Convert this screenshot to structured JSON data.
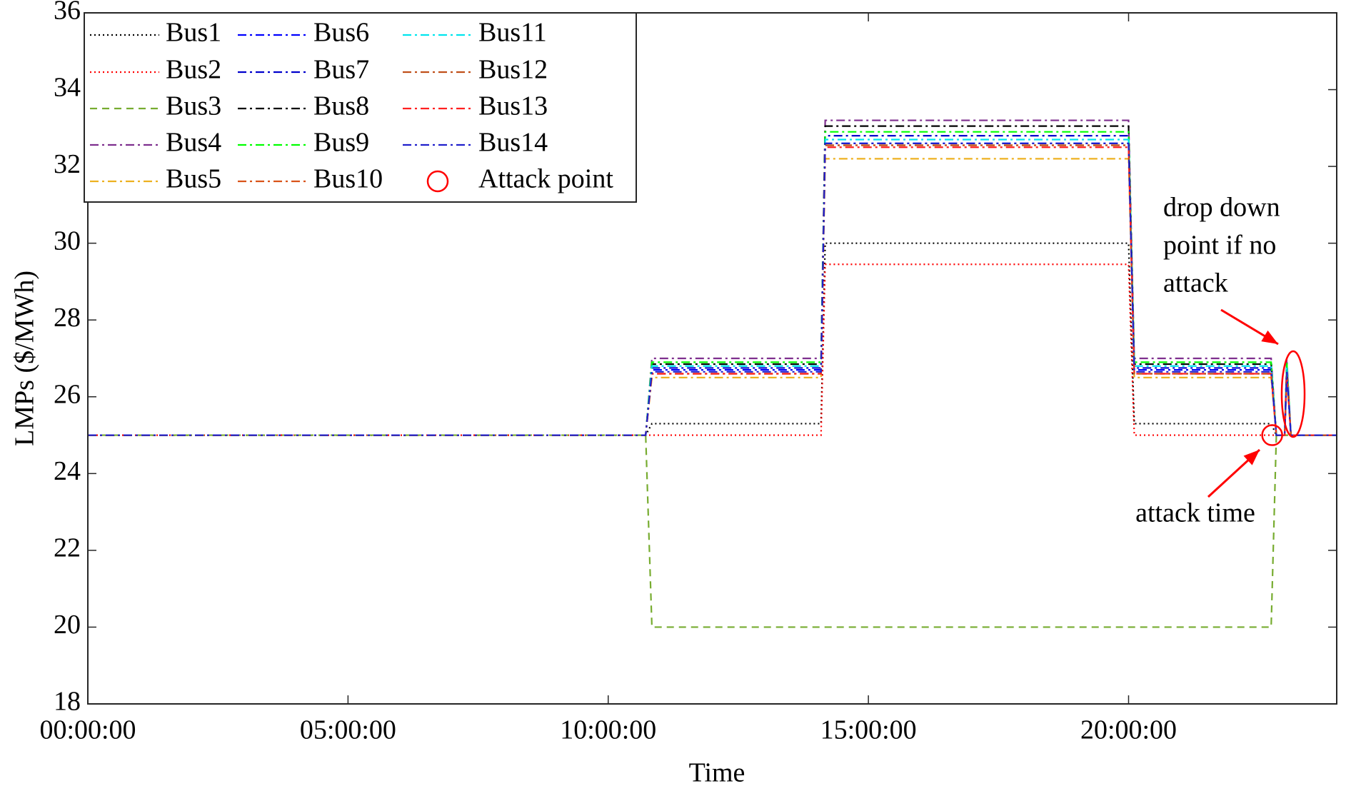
{
  "chart_data": {
    "type": "line",
    "xlabel": "Time",
    "ylabel": "LMPs ($/MWh)",
    "x": [
      0,
      10.72,
      10.84,
      14.09,
      14.17,
      20.0,
      20.11,
      22.74,
      22.84,
      23.0,
      23.04,
      23.12,
      24
    ],
    "xlim": [
      0,
      24
    ],
    "xticks": [
      {
        "value": 0,
        "label": "00:00:00"
      },
      {
        "value": 5,
        "label": "05:00:00"
      },
      {
        "value": 10,
        "label": "10:00:00"
      },
      {
        "value": 15,
        "label": "15:00:00"
      },
      {
        "value": 20,
        "label": "20:00:00"
      }
    ],
    "ylim": [
      18,
      36
    ],
    "yticks": [
      18,
      20,
      22,
      24,
      26,
      28,
      30,
      32,
      34,
      36
    ],
    "series": [
      {
        "name": "Bus1",
        "color": "#000000",
        "style": "dotted",
        "values": [
          25,
          25,
          25.3,
          25.3,
          30.0,
          30.0,
          25.3,
          25.3,
          25,
          25,
          25,
          25,
          25
        ]
      },
      {
        "name": "Bus2",
        "color": "#ff0000",
        "style": "dotted",
        "values": [
          25,
          25,
          25,
          25,
          29.45,
          29.45,
          25,
          25,
          25,
          25,
          25,
          25,
          25
        ]
      },
      {
        "name": "Bus3",
        "color": "#77ac30",
        "style": "dashed",
        "values": [
          25,
          25,
          20,
          20,
          20,
          20,
          20,
          20,
          25,
          25,
          25,
          25,
          25
        ]
      },
      {
        "name": "Bus4",
        "color": "#7e2f8e",
        "style": "dashdot",
        "values": [
          25,
          25,
          27.0,
          27.0,
          33.2,
          33.2,
          27.0,
          27.0,
          25,
          25,
          27.0,
          25,
          25
        ]
      },
      {
        "name": "Bus5",
        "color": "#edb120",
        "style": "dashdot",
        "values": [
          25,
          25,
          26.5,
          26.5,
          32.2,
          32.2,
          26.5,
          26.5,
          25,
          25,
          26.5,
          25,
          25
        ]
      },
      {
        "name": "Bus6",
        "color": "#0000ff",
        "style": "dashdot",
        "values": [
          25,
          25,
          26.7,
          26.7,
          32.6,
          32.6,
          26.7,
          26.7,
          25,
          25,
          26.7,
          25,
          25
        ]
      },
      {
        "name": "Bus7",
        "color": "#0000cc",
        "style": "dashdot",
        "values": [
          25,
          25,
          26.75,
          26.75,
          32.8,
          32.8,
          26.75,
          26.75,
          25,
          25,
          26.75,
          25,
          25
        ]
      },
      {
        "name": "Bus8",
        "color": "#000000",
        "style": "dashdot",
        "values": [
          25,
          25,
          26.85,
          26.85,
          33.05,
          33.05,
          26.85,
          26.85,
          25,
          25,
          26.85,
          25,
          25
        ]
      },
      {
        "name": "Bus9",
        "color": "#00ff00",
        "style": "dashdot",
        "values": [
          25,
          25,
          26.9,
          26.9,
          32.9,
          32.9,
          26.9,
          26.9,
          25,
          25,
          26.9,
          25,
          25
        ]
      },
      {
        "name": "Bus10",
        "color": "#d95319",
        "style": "dashdot",
        "values": [
          25,
          25,
          26.6,
          26.6,
          32.55,
          32.55,
          26.6,
          26.6,
          25,
          25,
          26.6,
          25,
          25
        ]
      },
      {
        "name": "Bus11",
        "color": "#00e5ee",
        "style": "dashdot",
        "values": [
          25,
          25,
          26.8,
          26.8,
          32.7,
          32.7,
          26.8,
          26.8,
          25,
          25,
          26.8,
          25,
          25
        ]
      },
      {
        "name": "Bus12",
        "color": "#c0501a",
        "style": "dashdot",
        "values": [
          25,
          25,
          26.6,
          26.6,
          32.55,
          32.55,
          26.6,
          26.6,
          25,
          25,
          26.6,
          25,
          25
        ]
      },
      {
        "name": "Bus13",
        "color": "#ff2020",
        "style": "dashdot",
        "values": [
          25,
          25,
          26.6,
          26.6,
          32.5,
          32.5,
          26.6,
          26.6,
          25,
          25,
          26.6,
          25,
          25
        ]
      },
      {
        "name": "Bus14",
        "color": "#2020cc",
        "style": "dashdot",
        "values": [
          25,
          25,
          26.65,
          26.65,
          32.6,
          32.6,
          26.65,
          26.65,
          25,
          25,
          26.65,
          25,
          25
        ]
      },
      {
        "name": "Attack point",
        "color": "#ff0000",
        "marker": "circle",
        "x": [
          22.76
        ],
        "values": [
          25
        ]
      }
    ],
    "annotations": [
      {
        "lines": [
          "drop down",
          "point if no",
          "attack"
        ],
        "color": "#ff0000"
      },
      {
        "lines": [
          "attack time"
        ],
        "color": "#ff0000"
      }
    ]
  }
}
